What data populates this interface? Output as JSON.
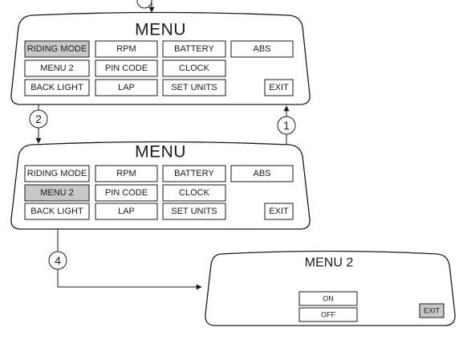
{
  "menu_screen_1": {
    "title": "MENU",
    "buttons": [
      "RIDING MODE",
      "RPM",
      "BATTERY",
      "ABS",
      "MENU 2",
      "PIN CODE",
      "CLOCK",
      "BACK LIGHT",
      "LAP",
      "SET UNITS",
      "EXIT"
    ],
    "selected": "RIDING MODE"
  },
  "menu_screen_2": {
    "title": "MENU",
    "buttons": [
      "RIDING MODE",
      "RPM",
      "BATTERY",
      "ABS",
      "MENU 2",
      "PIN CODE",
      "CLOCK",
      "BACK LIGHT",
      "LAP",
      "SET UNITS",
      "EXIT"
    ],
    "selected": "MENU 2"
  },
  "menu2_screen": {
    "title": "MENU 2",
    "on_label": "ON",
    "off_label": "OFF",
    "exit_label": "EXIT"
  },
  "steps": {
    "one": "1",
    "two": "2",
    "four": "4"
  }
}
